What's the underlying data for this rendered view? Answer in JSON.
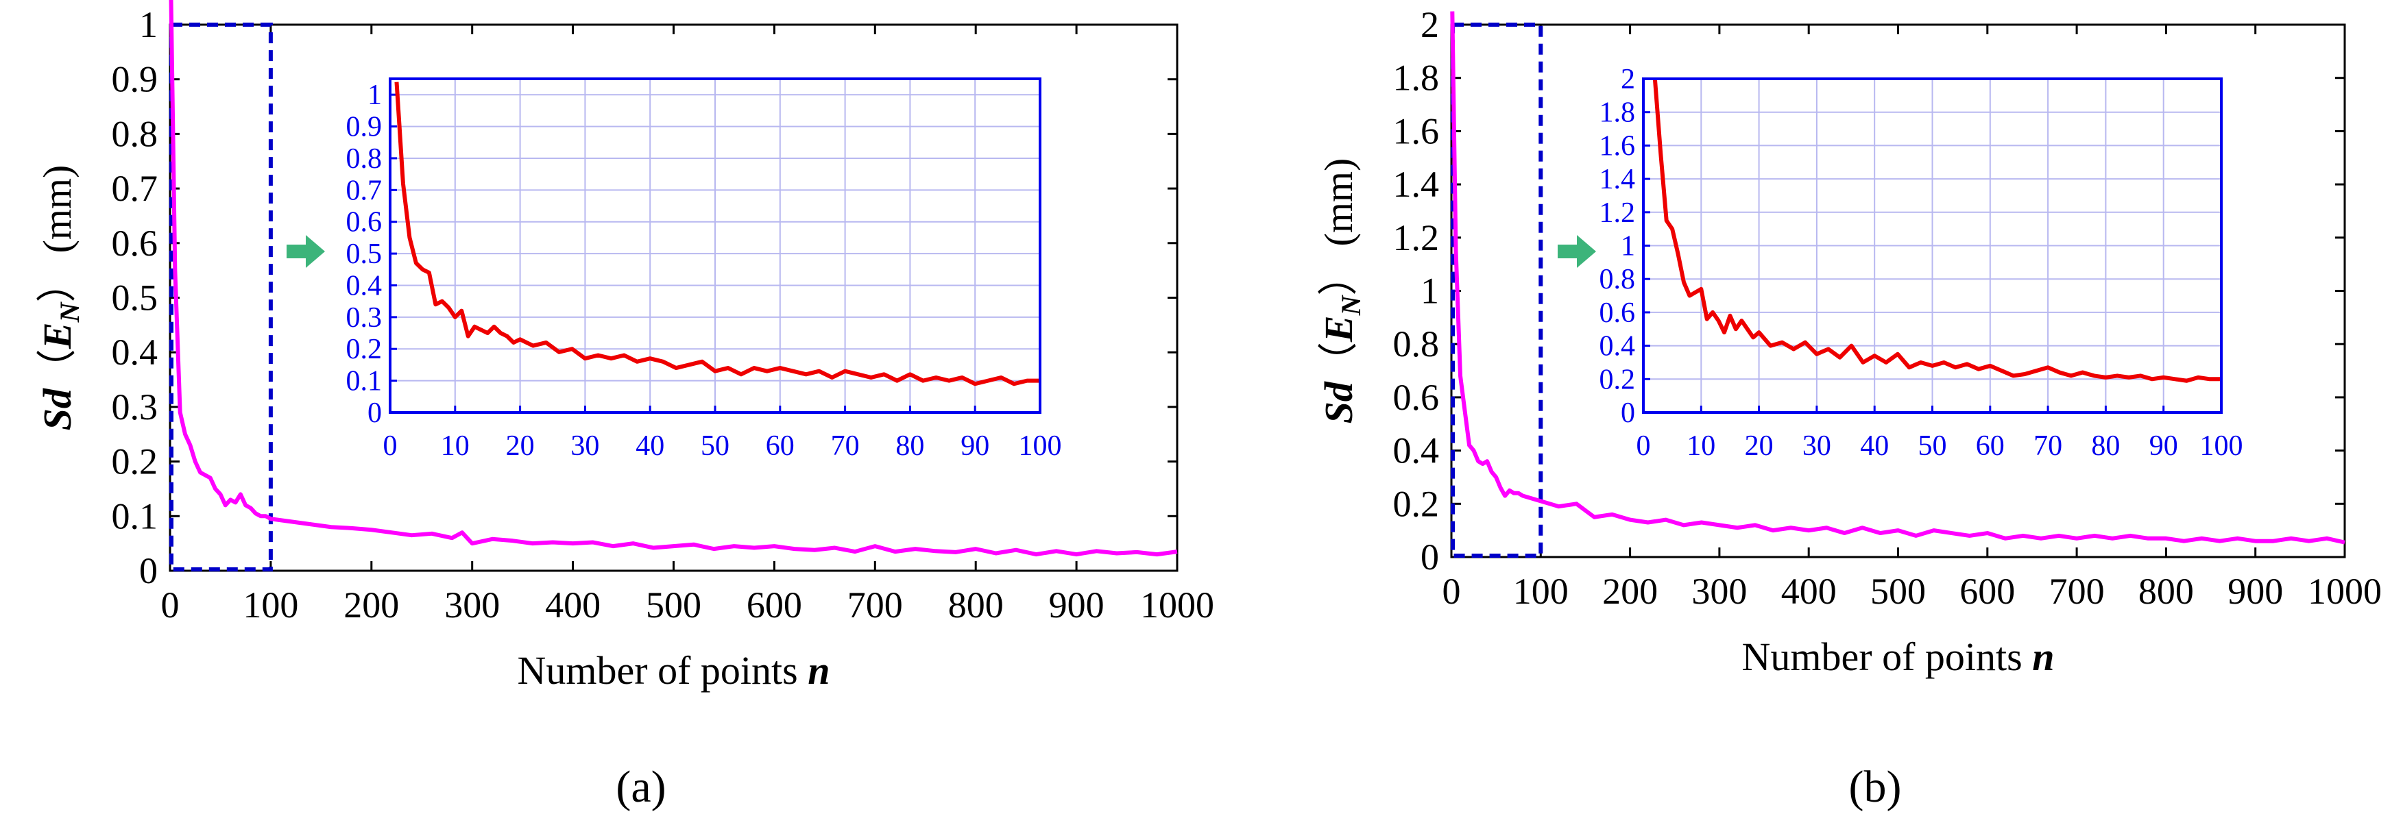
{
  "figure": {
    "panel_labels": [
      "(a)",
      "(b)"
    ],
    "colors": {
      "main_line": "#ff00ff",
      "inset_line": "#ee0000",
      "inset_axis": "#0000ee",
      "grid": "#b8b8f0",
      "arrow": "#3cb47a"
    }
  },
  "chart_data": [
    {
      "type": "line",
      "panel": "a",
      "xlabel_text": "Number of points ",
      "xlabel_var": "n",
      "ylabel_sd": "Sd",
      "ylabel_paren_open": "（",
      "ylabel_var": "E",
      "ylabel_sub": "N",
      "ylabel_paren_close": "）",
      "ylabel_unit": "(mm)",
      "xlim": [
        0,
        1000
      ],
      "ylim": [
        0,
        1
      ],
      "xticks": [
        0,
        100,
        200,
        300,
        400,
        500,
        600,
        700,
        800,
        900,
        1000
      ],
      "yticks": [
        0,
        0.1,
        0.2,
        0.3,
        0.4,
        0.5,
        0.6,
        0.7,
        0.8,
        0.9,
        1
      ],
      "highlight_box": {
        "x": [
          0,
          100
        ],
        "y": [
          0,
          1
        ]
      },
      "series": [
        {
          "name": "Sd(E_N)",
          "x": [
            1,
            5,
            10,
            15,
            20,
            25,
            30,
            35,
            40,
            45,
            50,
            55,
            60,
            65,
            70,
            75,
            80,
            85,
            90,
            95,
            100,
            120,
            140,
            160,
            180,
            200,
            220,
            240,
            260,
            280,
            290,
            300,
            320,
            340,
            360,
            380,
            400,
            420,
            440,
            460,
            480,
            500,
            520,
            540,
            560,
            580,
            600,
            620,
            640,
            660,
            680,
            700,
            720,
            740,
            760,
            780,
            800,
            820,
            840,
            860,
            880,
            900,
            920,
            940,
            960,
            980,
            1000
          ],
          "y": [
            1.05,
            0.55,
            0.29,
            0.25,
            0.23,
            0.2,
            0.18,
            0.175,
            0.17,
            0.15,
            0.14,
            0.12,
            0.13,
            0.125,
            0.14,
            0.12,
            0.115,
            0.105,
            0.1,
            0.1,
            0.095,
            0.09,
            0.085,
            0.08,
            0.078,
            0.075,
            0.07,
            0.065,
            0.068,
            0.06,
            0.07,
            0.05,
            0.058,
            0.055,
            0.05,
            0.052,
            0.05,
            0.052,
            0.045,
            0.05,
            0.042,
            0.045,
            0.048,
            0.04,
            0.045,
            0.042,
            0.045,
            0.04,
            0.038,
            0.042,
            0.035,
            0.045,
            0.035,
            0.04,
            0.036,
            0.034,
            0.04,
            0.032,
            0.038,
            0.03,
            0.036,
            0.03,
            0.036,
            0.032,
            0.034,
            0.03,
            0.035
          ]
        }
      ],
      "inset": {
        "xlim": [
          0,
          100
        ],
        "ylim": [
          0,
          1.05
        ],
        "xticks": [
          0,
          10,
          20,
          30,
          40,
          50,
          60,
          70,
          80,
          90,
          100
        ],
        "yticks": [
          0,
          0.1,
          0.2,
          0.3,
          0.4,
          0.5,
          0.6,
          0.7,
          0.8,
          0.9,
          1
        ],
        "x": [
          1,
          2,
          3,
          4,
          5,
          6,
          7,
          8,
          9,
          10,
          11,
          12,
          13,
          14,
          15,
          16,
          17,
          18,
          19,
          20,
          22,
          24,
          26,
          28,
          30,
          32,
          34,
          36,
          38,
          40,
          42,
          44,
          46,
          48,
          50,
          52,
          54,
          56,
          58,
          60,
          62,
          64,
          66,
          68,
          70,
          72,
          74,
          76,
          78,
          80,
          82,
          84,
          86,
          88,
          90,
          92,
          94,
          96,
          98,
          100
        ],
        "y": [
          1.04,
          0.72,
          0.55,
          0.47,
          0.45,
          0.44,
          0.34,
          0.35,
          0.33,
          0.3,
          0.32,
          0.24,
          0.27,
          0.26,
          0.25,
          0.27,
          0.25,
          0.24,
          0.22,
          0.23,
          0.21,
          0.22,
          0.19,
          0.2,
          0.17,
          0.18,
          0.17,
          0.18,
          0.16,
          0.17,
          0.16,
          0.14,
          0.15,
          0.16,
          0.13,
          0.14,
          0.12,
          0.14,
          0.13,
          0.14,
          0.13,
          0.12,
          0.13,
          0.11,
          0.13,
          0.12,
          0.11,
          0.12,
          0.1,
          0.12,
          0.1,
          0.11,
          0.1,
          0.11,
          0.09,
          0.1,
          0.11,
          0.09,
          0.1,
          0.1
        ]
      }
    },
    {
      "type": "line",
      "panel": "b",
      "xlabel_text": "Number of points ",
      "xlabel_var": "n",
      "ylabel_sd": "Sd",
      "ylabel_paren_open": "（",
      "ylabel_var": "E",
      "ylabel_sub": "N",
      "ylabel_paren_close": "）",
      "ylabel_unit": "(mm)",
      "xlim": [
        0,
        1000
      ],
      "ylim": [
        0,
        2
      ],
      "xticks": [
        0,
        100,
        200,
        300,
        400,
        500,
        600,
        700,
        800,
        900,
        1000
      ],
      "yticks": [
        0,
        0.2,
        0.4,
        0.6,
        0.8,
        1,
        1.2,
        1.4,
        1.6,
        1.8,
        2
      ],
      "highlight_box": {
        "x": [
          0,
          100
        ],
        "y": [
          0,
          2
        ]
      },
      "series": [
        {
          "name": "Sd(E_N)",
          "x": [
            1,
            5,
            10,
            15,
            20,
            25,
            30,
            35,
            40,
            45,
            50,
            55,
            60,
            65,
            70,
            75,
            80,
            90,
            100,
            120,
            140,
            160,
            180,
            200,
            220,
            240,
            260,
            280,
            300,
            320,
            340,
            360,
            380,
            400,
            420,
            440,
            460,
            480,
            500,
            520,
            540,
            560,
            580,
            600,
            620,
            640,
            660,
            680,
            700,
            720,
            740,
            760,
            780,
            800,
            820,
            840,
            860,
            880,
            900,
            920,
            940,
            960,
            980,
            1000
          ],
          "y": [
            2.05,
            1.15,
            0.68,
            0.55,
            0.42,
            0.4,
            0.36,
            0.35,
            0.36,
            0.32,
            0.3,
            0.26,
            0.23,
            0.25,
            0.24,
            0.24,
            0.23,
            0.22,
            0.21,
            0.19,
            0.2,
            0.15,
            0.16,
            0.14,
            0.13,
            0.14,
            0.12,
            0.13,
            0.12,
            0.11,
            0.12,
            0.1,
            0.11,
            0.1,
            0.11,
            0.09,
            0.11,
            0.09,
            0.1,
            0.08,
            0.1,
            0.09,
            0.08,
            0.09,
            0.07,
            0.08,
            0.07,
            0.08,
            0.07,
            0.08,
            0.07,
            0.08,
            0.07,
            0.07,
            0.06,
            0.07,
            0.06,
            0.07,
            0.06,
            0.06,
            0.07,
            0.06,
            0.07,
            0.055
          ]
        }
      ],
      "inset": {
        "xlim": [
          0,
          100
        ],
        "ylim": [
          0,
          2
        ],
        "xticks": [
          0,
          10,
          20,
          30,
          40,
          50,
          60,
          70,
          80,
          90,
          100
        ],
        "yticks": [
          0,
          0.2,
          0.4,
          0.6,
          0.8,
          1,
          1.2,
          1.4,
          1.6,
          1.8,
          2
        ],
        "x": [
          2,
          3,
          4,
          5,
          6,
          7,
          8,
          9,
          10,
          11,
          12,
          13,
          14,
          15,
          16,
          17,
          18,
          19,
          20,
          22,
          24,
          26,
          28,
          30,
          32,
          34,
          36,
          38,
          40,
          42,
          44,
          46,
          48,
          50,
          52,
          54,
          56,
          58,
          60,
          62,
          64,
          66,
          68,
          70,
          72,
          74,
          76,
          78,
          80,
          82,
          84,
          86,
          88,
          90,
          92,
          94,
          96,
          98,
          100
        ],
        "y": [
          2.0,
          1.55,
          1.15,
          1.1,
          0.95,
          0.78,
          0.7,
          0.72,
          0.74,
          0.56,
          0.6,
          0.55,
          0.48,
          0.58,
          0.5,
          0.55,
          0.5,
          0.45,
          0.48,
          0.4,
          0.42,
          0.38,
          0.42,
          0.35,
          0.38,
          0.33,
          0.4,
          0.3,
          0.34,
          0.3,
          0.35,
          0.27,
          0.3,
          0.28,
          0.3,
          0.27,
          0.29,
          0.26,
          0.28,
          0.25,
          0.22,
          0.23,
          0.25,
          0.27,
          0.24,
          0.22,
          0.24,
          0.22,
          0.21,
          0.22,
          0.21,
          0.22,
          0.2,
          0.21,
          0.2,
          0.19,
          0.21,
          0.2,
          0.2
        ]
      }
    }
  ]
}
